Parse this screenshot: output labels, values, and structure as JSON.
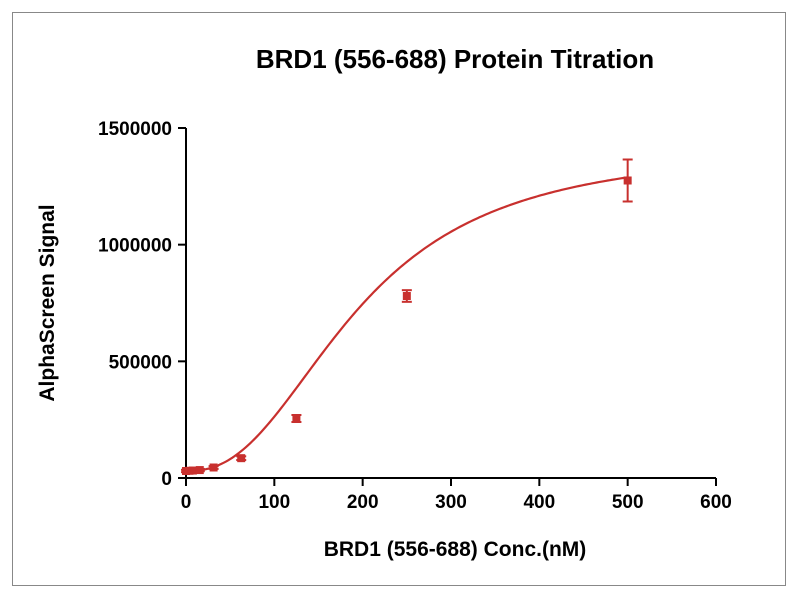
{
  "chart_data": {
    "type": "line",
    "title": "BRD1 (556-688) Protein Titration",
    "xlabel": "BRD1 (556-688) Conc.(nM)",
    "ylabel": "AlphaScreen Signal",
    "xlim": [
      0,
      600
    ],
    "ylim": [
      0,
      1500000
    ],
    "x_ticks": [
      "0",
      "100",
      "200",
      "300",
      "400",
      "500",
      "600"
    ],
    "y_ticks": [
      "0",
      "500000",
      "1000000",
      "1500000"
    ],
    "grid": false,
    "series": [
      {
        "color": "#c8302e",
        "points": [
          {
            "x": 0,
            "y": 30000,
            "err": 5000
          },
          {
            "x": 3.9,
            "y": 31000,
            "err": 5000
          },
          {
            "x": 7.8,
            "y": 32000,
            "err": 5000
          },
          {
            "x": 15.6,
            "y": 34000,
            "err": 5000
          },
          {
            "x": 31.25,
            "y": 45000,
            "err": 6000
          },
          {
            "x": 62.5,
            "y": 85000,
            "err": 8000
          },
          {
            "x": 125,
            "y": 255000,
            "err": 15000
          },
          {
            "x": 250,
            "y": 780000,
            "err": 25000
          },
          {
            "x": 500,
            "y": 1275000,
            "err": 90000
          }
        ],
        "fit_curve": {
          "bottom": 30000,
          "top": 1420000,
          "ec50": 195,
          "hill": 2.4
        }
      }
    ]
  }
}
